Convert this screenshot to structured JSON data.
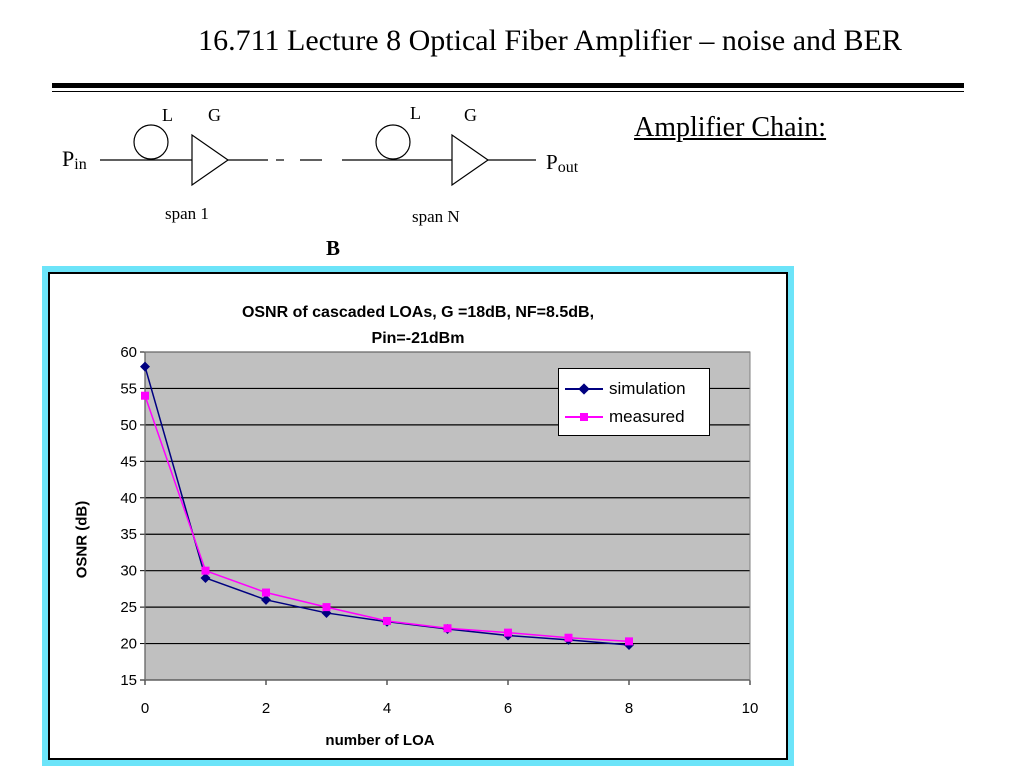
{
  "slide": {
    "title": "16.711 Lecture 8 Optical Fiber Amplifier – noise and BER",
    "heading": "Amplifier Chain:",
    "figure_label": "B"
  },
  "diagram": {
    "input_label": "P",
    "input_sub": "in",
    "output_label": "P",
    "output_sub": "out",
    "loss_label": "L",
    "gain_label": "G",
    "span_first": "span 1",
    "span_last": "span N"
  },
  "colors": {
    "frame": "#6ce4f9",
    "plot_bg": "#c0c0c0",
    "simulation": "#000080",
    "measured": "#ff00ff"
  },
  "chart_data": {
    "type": "line",
    "title_line1": "OSNR of cascaded LOAs, G =18dB, NF=8.5dB,",
    "title_line2": "Pin=-21dBm",
    "xlabel": "number of LOA",
    "ylabel": "OSNR (dB)",
    "xlim": [
      0,
      10
    ],
    "ylim": [
      15,
      60
    ],
    "xticks": [
      "0",
      "2",
      "4",
      "6",
      "8",
      "10"
    ],
    "yticks": [
      "15",
      "20",
      "25",
      "30",
      "35",
      "40",
      "45",
      "50",
      "55",
      "60"
    ],
    "grid": "horizontal",
    "legend_position": "top-right",
    "x": [
      0,
      1,
      2,
      3,
      4,
      5,
      6,
      7,
      8
    ],
    "series": [
      {
        "name": "simulation",
        "marker": "diamond",
        "values": [
          58,
          29,
          26,
          24.2,
          23,
          22,
          21.1,
          20.5,
          19.8
        ]
      },
      {
        "name": "measured",
        "marker": "square",
        "values": [
          54,
          30,
          27,
          25,
          23.1,
          22.1,
          21.5,
          20.8,
          20.3
        ]
      }
    ]
  }
}
